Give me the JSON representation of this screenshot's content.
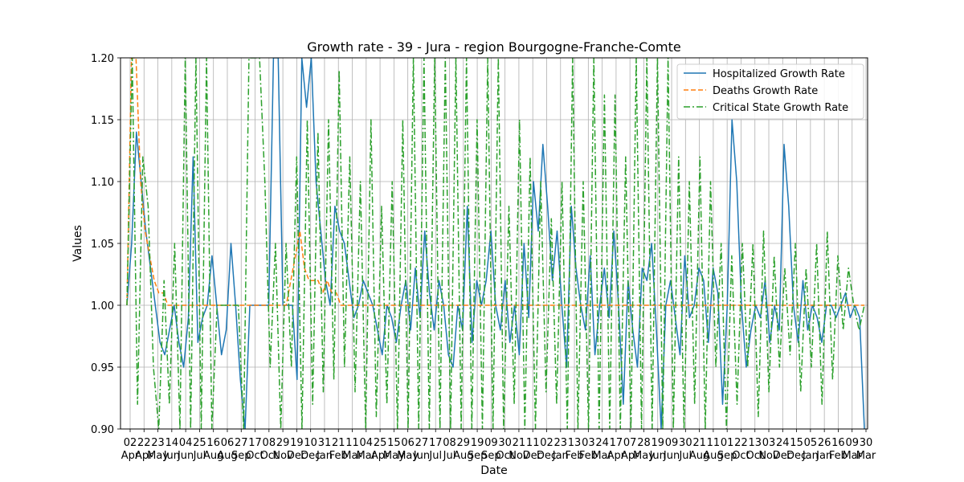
{
  "chart_data": {
    "type": "line",
    "title": "Growth rate - 39 - Jura - region Bourgogne-Franche-Comte",
    "xlabel": "Date",
    "ylabel": "Values",
    "ylim": [
      0.9,
      1.2
    ],
    "yticks": [
      "0.90",
      "0.95",
      "1.00",
      "1.05",
      "1.10",
      "1.15",
      "1.20"
    ],
    "x_tick_days": [
      "02",
      "22",
      "23",
      "14",
      "04",
      "25",
      "16",
      "06",
      "27",
      "17",
      "08",
      "29",
      "19",
      "10",
      "31",
      "21",
      "11",
      "04",
      "25",
      "15",
      "06",
      "27",
      "17",
      "08",
      "29",
      "19",
      "09",
      "30",
      "21",
      "11",
      "02",
      "23",
      "13",
      "03",
      "24",
      "17",
      "07",
      "28",
      "19",
      "09",
      "30",
      "21",
      "11",
      "01",
      "22",
      "13",
      "03",
      "24",
      "15",
      "05",
      "26",
      "16",
      "09",
      "30"
    ],
    "x_tick_months": [
      "Apr",
      "Apr",
      "May",
      "Jun",
      "Jun",
      "Jul",
      "Aug",
      "Aug",
      "Sep",
      "Oct",
      "Oct",
      "Nov",
      "Dec",
      "Dec",
      "Jan",
      "Feb",
      "Mar",
      "Mar",
      "Apr",
      "May",
      "May",
      "Jun",
      "Jul",
      "Jul",
      "Aug",
      "Sep",
      "Sep",
      "Oct",
      "Nov",
      "Dec",
      "Dec",
      "Jan",
      "Feb",
      "Feb",
      "Mar",
      "Apr",
      "Apr",
      "May",
      "Jun",
      "Jun",
      "Jul",
      "Aug",
      "Aug",
      "Sep",
      "Oct",
      "Oct",
      "Nov",
      "Dec",
      "Dec",
      "Jan",
      "Jan",
      "Feb",
      "Mar",
      "Mar"
    ],
    "grid": true,
    "legend_position": "top-right",
    "series": [
      {
        "name": "Hospitalized Growth Rate",
        "color": "#1f77b4",
        "style": "solid",
        "values": [
          1.0,
          1.05,
          1.14,
          1.1,
          1.06,
          1.03,
          1.0,
          0.97,
          0.96,
          0.98,
          1.0,
          0.97,
          0.95,
          0.99,
          1.12,
          0.97,
          0.99,
          1.0,
          1.04,
          1.0,
          0.96,
          0.98,
          1.05,
          1.0,
          0.94,
          0.9,
          1.0,
          1.0,
          1.0,
          1.0,
          1.0,
          1.2,
          1.2,
          1.0,
          1.0,
          1.0,
          0.94,
          1.2,
          1.16,
          1.2,
          1.1,
          1.06,
          1.02,
          1.0,
          1.08,
          1.06,
          1.05,
          1.02,
          0.99,
          1.0,
          1.02,
          1.01,
          1.0,
          0.98,
          0.96,
          1.0,
          0.99,
          0.97,
          1.0,
          1.02,
          0.98,
          1.03,
          0.99,
          1.06,
          1.01,
          0.98,
          1.02,
          1.0,
          0.96,
          0.95,
          1.0,
          0.98,
          1.08,
          0.97,
          1.02,
          1.0,
          1.02,
          1.06,
          1.0,
          0.98,
          1.02,
          0.97,
          1.0,
          0.96,
          1.05,
          0.99,
          1.1,
          1.06,
          1.13,
          1.08,
          1.02,
          1.06,
          1.0,
          0.95,
          1.08,
          1.03,
          1.0,
          0.98,
          1.04,
          0.96,
          1.0,
          1.03,
          0.99,
          1.06,
          1.0,
          0.92,
          1.02,
          0.98,
          0.95,
          1.03,
          1.02,
          1.05,
          0.98,
          0.9,
          1.0,
          1.02,
          0.99,
          0.96,
          1.04,
          0.99,
          1.0,
          1.03,
          1.02,
          0.97,
          1.03,
          1.01,
          0.92,
          1.0,
          1.15,
          1.1,
          1.0,
          0.95,
          0.98,
          1.0,
          0.99,
          1.02,
          0.97,
          1.0,
          0.98,
          1.13,
          1.08,
          1.0,
          0.97,
          1.02,
          0.98,
          1.0,
          0.99,
          0.97,
          1.0,
          1.0,
          0.99,
          1.0,
          1.01,
          0.99,
          1.0,
          0.99,
          0.9
        ]
      },
      {
        "name": "Deaths Growth Rate",
        "color": "#ff7f0e",
        "style": "dashed",
        "values": [
          1.0,
          1.2,
          1.2,
          1.1,
          1.06,
          1.04,
          1.02,
          1.01,
          1.01,
          1.0,
          1.0,
          1.0,
          1.0,
          1.0,
          1.0,
          1.0,
          1.0,
          1.0,
          1.0,
          1.0,
          1.0,
          1.0,
          1.0,
          1.0,
          1.0,
          1.0,
          1.0,
          1.0,
          1.0,
          1.0,
          1.0,
          1.0,
          1.0,
          1.0,
          1.0,
          1.0,
          1.02,
          1.04,
          1.06,
          1.03,
          1.02,
          1.02,
          1.02,
          1.01,
          1.02,
          1.01,
          1.01,
          1.0,
          1.0,
          1.0,
          1.0,
          1.0,
          1.0,
          1.0,
          1.0,
          1.0,
          1.0,
          1.0,
          1.0,
          1.0,
          1.0,
          1.0,
          1.0,
          1.0,
          1.0,
          1.0,
          1.0,
          1.0,
          1.0,
          1.0,
          1.0,
          1.0,
          1.0,
          1.0,
          1.0,
          1.0,
          1.0,
          1.0,
          1.0,
          1.0,
          1.0,
          1.0,
          1.0,
          1.0,
          1.0,
          1.0,
          1.0,
          1.0,
          1.0,
          1.0,
          1.0,
          1.0,
          1.0,
          1.0,
          1.0,
          1.0,
          1.0,
          1.0,
          1.0,
          1.0,
          1.0,
          1.0,
          1.0,
          1.0,
          1.0,
          1.0,
          1.0,
          1.0,
          1.0,
          1.0,
          1.0,
          1.0,
          1.0,
          1.0,
          1.0,
          1.0,
          1.0,
          1.0,
          1.0,
          1.0,
          1.0,
          1.0,
          1.0,
          1.0,
          1.0,
          1.0,
          1.0,
          1.0,
          1.0,
          1.0,
          1.0,
          1.0,
          1.0,
          1.0,
          1.0,
          1.0,
          1.0,
          1.0,
          1.0,
          1.0,
          1.0,
          1.0,
          1.0,
          1.0,
          1.0,
          1.0,
          1.0,
          1.0,
          1.0,
          1.0,
          1.0,
          1.0,
          1.0,
          1.0,
          1.0,
          1.0,
          1.0,
          1.0,
          1.0,
          1.0,
          1.0,
          1.0,
          1.0
        ]
      },
      {
        "name": "Critical State Growth Rate",
        "color": "#2ca02c",
        "style": "dashdot",
        "values": [
          1.0,
          1.2,
          0.92,
          1.12,
          1.08,
          0.95,
          0.9,
          1.02,
          0.92,
          1.05,
          0.9,
          1.2,
          0.9,
          1.2,
          0.9,
          1.2,
          0.9,
          1.0,
          1.0,
          1.0,
          1.0,
          1.0,
          0.9,
          1.2,
          1.2,
          1.2,
          1.1,
          0.95,
          1.05,
          0.9,
          1.05,
          0.95,
          1.12,
          0.9,
          1.15,
          0.92,
          1.14,
          0.93,
          1.15,
          0.94,
          1.19,
          0.95,
          1.12,
          0.93,
          1.1,
          0.9,
          1.15,
          0.91,
          1.08,
          0.92,
          1.1,
          0.9,
          1.15,
          0.9,
          1.2,
          0.9,
          1.2,
          0.9,
          1.2,
          0.9,
          1.2,
          0.9,
          1.2,
          0.9,
          1.2,
          0.9,
          1.15,
          0.9,
          1.2,
          0.9,
          1.2,
          0.9,
          1.08,
          0.92,
          1.15,
          0.9,
          1.12,
          0.9,
          1.1,
          0.93,
          1.07,
          0.92,
          1.1,
          0.9,
          1.2,
          0.9,
          1.1,
          0.9,
          1.2,
          0.9,
          1.17,
          0.9,
          1.17,
          0.9,
          1.12,
          0.9,
          1.2,
          0.9,
          1.2,
          0.9,
          1.2,
          0.9,
          1.2,
          0.9,
          1.12,
          0.9,
          1.1,
          0.92,
          1.12,
          0.9,
          1.1,
          0.95,
          1.05,
          0.9,
          1.04,
          0.92,
          1.05,
          0.95,
          1.05,
          0.91,
          1.06,
          0.93,
          1.04,
          0.95,
          1.03,
          0.96,
          1.05,
          0.93,
          1.03,
          0.95,
          1.05,
          0.92,
          1.06,
          0.94,
          1.04,
          0.98,
          1.03,
          1.0,
          0.98,
          1.0
        ]
      }
    ]
  }
}
